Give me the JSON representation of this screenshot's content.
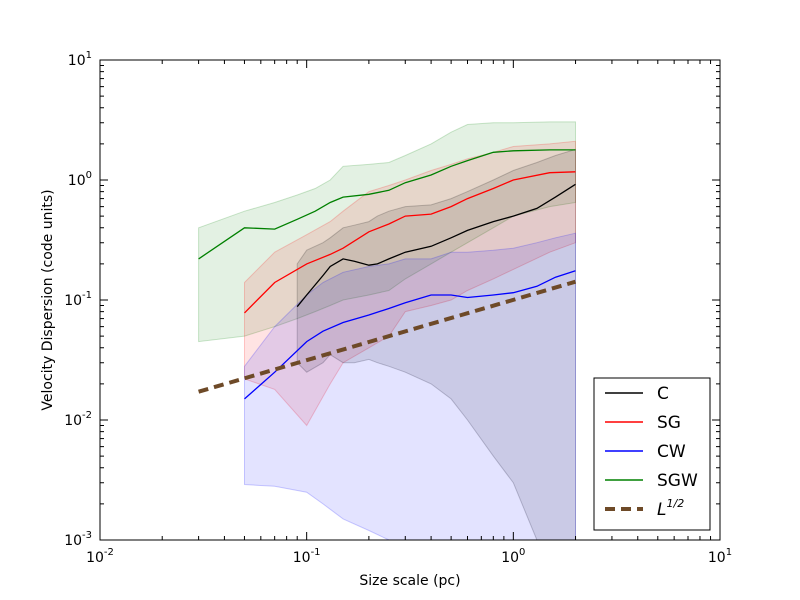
{
  "chart_data": {
    "type": "line",
    "title": "",
    "xlabel": "Size scale (pc)",
    "ylabel": "Velocity Dispersion (code units)",
    "xscale": "log",
    "yscale": "log",
    "xlim": [
      0.01,
      10
    ],
    "ylim": [
      0.001,
      10
    ],
    "grid": false,
    "legend_position": "lower-right",
    "x_ticks": [
      {
        "value": 0.01,
        "base": "10",
        "exp": "-2"
      },
      {
        "value": 0.1,
        "base": "10",
        "exp": "-1"
      },
      {
        "value": 1,
        "base": "10",
        "exp": "0"
      },
      {
        "value": 10,
        "base": "10",
        "exp": "1"
      }
    ],
    "y_ticks": [
      {
        "value": 0.001,
        "base": "10",
        "exp": "-3"
      },
      {
        "value": 0.01,
        "base": "10",
        "exp": "-2"
      },
      {
        "value": 0.1,
        "base": "10",
        "exp": "-1"
      },
      {
        "value": 1,
        "base": "10",
        "exp": "0"
      },
      {
        "value": 10,
        "base": "10",
        "exp": "1"
      }
    ],
    "series": [
      {
        "name": "SGW",
        "key": "sgw",
        "color": "#008000",
        "x": [
          0.03,
          0.05,
          0.07,
          0.09,
          0.11,
          0.13,
          0.15,
          0.2,
          0.25,
          0.3,
          0.4,
          0.5,
          0.6,
          0.8,
          1.0,
          1.5,
          2.0
        ],
        "y": [
          0.22,
          0.4,
          0.39,
          0.47,
          0.55,
          0.65,
          0.72,
          0.76,
          0.82,
          0.95,
          1.1,
          1.3,
          1.45,
          1.7,
          1.75,
          1.78,
          1.78
        ],
        "band_upper": [
          0.4,
          0.55,
          0.65,
          0.75,
          0.85,
          1.0,
          1.3,
          1.35,
          1.4,
          1.6,
          2.0,
          2.5,
          2.9,
          3.0,
          3.0,
          3.05,
          3.05
        ],
        "band_lower": [
          0.045,
          0.05,
          0.06,
          0.07,
          0.08,
          0.09,
          0.1,
          0.11,
          0.12,
          0.15,
          0.2,
          0.25,
          0.3,
          0.4,
          0.5,
          0.6,
          0.65
        ]
      },
      {
        "name": "SG",
        "key": "sg",
        "color": "#ff0000",
        "x": [
          0.05,
          0.07,
          0.1,
          0.13,
          0.15,
          0.2,
          0.25,
          0.3,
          0.4,
          0.5,
          0.6,
          0.8,
          1.0,
          1.5,
          2.0
        ],
        "y": [
          0.078,
          0.14,
          0.2,
          0.24,
          0.27,
          0.37,
          0.43,
          0.5,
          0.52,
          0.6,
          0.7,
          0.85,
          1.0,
          1.15,
          1.17
        ],
        "band_upper": [
          0.14,
          0.25,
          0.35,
          0.45,
          0.55,
          0.8,
          0.9,
          1.0,
          1.2,
          1.35,
          1.5,
          1.7,
          1.9,
          2.0,
          2.1
        ],
        "band_lower": [
          0.022,
          0.018,
          0.009,
          0.02,
          0.03,
          0.04,
          0.05,
          0.08,
          0.09,
          0.1,
          0.12,
          0.15,
          0.18,
          0.25,
          0.3
        ]
      },
      {
        "name": "C",
        "key": "c",
        "color": "#000000",
        "x": [
          0.09,
          0.1,
          0.12,
          0.13,
          0.15,
          0.17,
          0.2,
          0.22,
          0.25,
          0.3,
          0.4,
          0.5,
          0.6,
          0.8,
          1.0,
          1.3,
          1.6,
          2.0
        ],
        "y": [
          0.088,
          0.11,
          0.16,
          0.19,
          0.22,
          0.21,
          0.195,
          0.2,
          0.22,
          0.25,
          0.28,
          0.33,
          0.38,
          0.45,
          0.5,
          0.58,
          0.72,
          0.92
        ],
        "band_upper": [
          0.2,
          0.26,
          0.3,
          0.33,
          0.4,
          0.42,
          0.45,
          0.5,
          0.55,
          0.6,
          0.62,
          0.7,
          0.8,
          1.0,
          1.2,
          1.4,
          1.6,
          1.8
        ],
        "band_lower": [
          0.03,
          0.025,
          0.03,
          0.035,
          0.03,
          0.03,
          0.032,
          0.03,
          0.028,
          0.025,
          0.02,
          0.015,
          0.01,
          0.005,
          0.003,
          0.001,
          0.001,
          0.001
        ]
      },
      {
        "name": "CW",
        "key": "cw",
        "color": "#0000ff",
        "x": [
          0.05,
          0.07,
          0.1,
          0.12,
          0.15,
          0.2,
          0.25,
          0.3,
          0.4,
          0.5,
          0.6,
          0.8,
          1.0,
          1.3,
          1.6,
          2.0
        ],
        "y": [
          0.015,
          0.025,
          0.045,
          0.055,
          0.065,
          0.075,
          0.085,
          0.095,
          0.11,
          0.11,
          0.105,
          0.11,
          0.115,
          0.13,
          0.155,
          0.175
        ],
        "band_upper": [
          0.028,
          0.06,
          0.11,
          0.14,
          0.17,
          0.19,
          0.2,
          0.22,
          0.22,
          0.25,
          0.25,
          0.26,
          0.27,
          0.3,
          0.33,
          0.36
        ],
        "band_lower": [
          0.0029,
          0.0028,
          0.0025,
          0.002,
          0.0015,
          0.0012,
          0.001,
          0.001,
          0.001,
          0.001,
          0.001,
          0.001,
          0.001,
          0.001,
          0.001,
          0.001
        ]
      },
      {
        "name": "L^{1/2}",
        "key": "power",
        "color": "#6e4a28",
        "dashed": true,
        "x": [
          0.03,
          2.0
        ],
        "y": [
          0.0172,
          0.142
        ]
      }
    ],
    "legend": [
      {
        "key": "c",
        "label": "C"
      },
      {
        "key": "sg",
        "label": "SG"
      },
      {
        "key": "cw",
        "label": "CW"
      },
      {
        "key": "sgw",
        "label": "SGW"
      },
      {
        "key": "power",
        "label_base": "L",
        "label_exp": "1/2"
      }
    ]
  }
}
